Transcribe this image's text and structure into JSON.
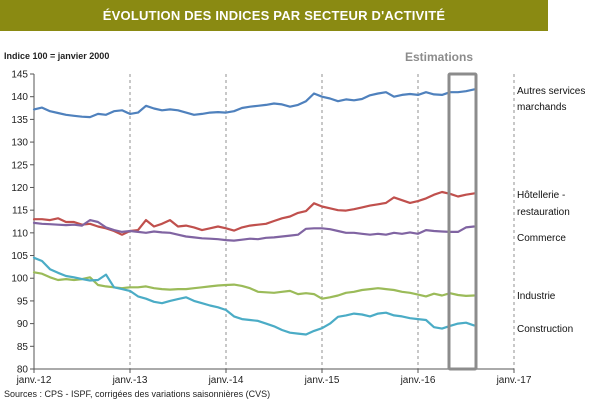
{
  "header": {
    "title": "ÉVOLUTION DES INDICES PAR SECTEUR D'ACTIVITÉ"
  },
  "index_note": "Indice 100 = janvier 2000",
  "estimations_label": "Estimations",
  "source": "Sources : CPS - ISPF, corrigées des variations saisonnières (CVS)",
  "chart_data": {
    "type": "line",
    "title": "ÉVOLUTION DES INDICES PAR SECTEUR D'ACTIVITÉ",
    "xlabel": "",
    "ylabel": "Indice 100 = janvier 2000",
    "ylim": [
      80,
      145
    ],
    "y_ticks": [
      80,
      85,
      90,
      95,
      100,
      105,
      110,
      115,
      120,
      125,
      130,
      135,
      140,
      145
    ],
    "x_ticks": [
      "janv.-12",
      "janv.-13",
      "janv.-14",
      "janv.-15",
      "janv.-16",
      "janv.-17"
    ],
    "x_start_label": "janv.-12",
    "x_period": "monthly",
    "highlight": {
      "label": "Estimations",
      "from_month_index": 52,
      "to_month_index": 55
    },
    "grid": "vertical dashed at January",
    "legend": "labels at right end of each line",
    "series": [
      {
        "name": "Autres services marchands",
        "label_lines": [
          "Autres services",
          "marchands"
        ],
        "color": "#4f81bd",
        "values": [
          137.2,
          137.6,
          136.8,
          136.4,
          136.0,
          135.8,
          135.6,
          135.5,
          136.2,
          136.0,
          136.8,
          137.0,
          136.2,
          136.5,
          138.0,
          137.4,
          137.0,
          137.2,
          137.0,
          136.5,
          136.0,
          136.2,
          136.5,
          136.6,
          136.5,
          136.8,
          137.5,
          137.8,
          138.0,
          138.2,
          138.5,
          138.3,
          137.8,
          138.2,
          139.0,
          140.7,
          140.0,
          139.6,
          139.0,
          139.4,
          139.2,
          139.5,
          140.3,
          140.7,
          141.0,
          140.0,
          140.4,
          140.6,
          140.4,
          141.0,
          140.5,
          140.4,
          141.0,
          141.0,
          141.2,
          141.6
        ]
      },
      {
        "name": "Hôtellerie - restauration",
        "label_lines": [
          "Hôtellerie -",
          "restauration"
        ],
        "color": "#c0504d",
        "values": [
          113.0,
          113.0,
          112.8,
          113.2,
          112.4,
          112.4,
          111.8,
          112.0,
          111.4,
          111.0,
          110.4,
          109.6,
          110.4,
          110.6,
          112.8,
          111.4,
          112.0,
          112.8,
          111.4,
          111.6,
          111.2,
          110.6,
          111.0,
          111.4,
          111.0,
          110.5,
          111.2,
          111.6,
          111.8,
          112.0,
          112.6,
          113.2,
          113.6,
          114.4,
          114.8,
          116.5,
          115.8,
          115.4,
          115.0,
          114.9,
          115.2,
          115.6,
          116.0,
          116.3,
          116.6,
          117.8,
          117.2,
          116.6,
          117.0,
          117.6,
          118.4,
          119.0,
          118.6,
          118.0,
          118.4,
          118.7
        ]
      },
      {
        "name": "Commerce",
        "label_lines": [
          "Commerce"
        ],
        "color": "#8064a2",
        "values": [
          112.2,
          112.0,
          111.9,
          111.8,
          111.7,
          111.8,
          111.6,
          112.8,
          112.4,
          111.2,
          110.6,
          110.2,
          110.4,
          110.2,
          110.0,
          110.3,
          110.1,
          110.0,
          109.6,
          109.2,
          109.0,
          108.8,
          108.7,
          108.6,
          108.4,
          108.3,
          108.5,
          108.7,
          108.6,
          108.9,
          109.0,
          109.2,
          109.4,
          109.6,
          110.9,
          111.0,
          111.0,
          110.8,
          110.4,
          110.0,
          110.0,
          109.8,
          109.6,
          109.8,
          109.6,
          110.0,
          109.8,
          110.1,
          109.8,
          110.6,
          110.4,
          110.3,
          110.2,
          110.2,
          111.2,
          111.4
        ]
      },
      {
        "name": "Industrie",
        "label_lines": [
          "Industrie"
        ],
        "color": "#9bbb59",
        "values": [
          101.3,
          101.0,
          100.2,
          99.6,
          99.8,
          99.6,
          99.8,
          100.2,
          98.5,
          98.2,
          98.0,
          97.8,
          98.0,
          98.0,
          98.2,
          97.8,
          97.6,
          97.5,
          97.6,
          97.6,
          97.8,
          98.0,
          98.2,
          98.4,
          98.5,
          98.6,
          98.3,
          97.8,
          97.0,
          96.9,
          96.8,
          97.0,
          97.2,
          96.5,
          96.7,
          96.5,
          95.5,
          95.8,
          96.2,
          96.8,
          97.0,
          97.4,
          97.6,
          97.8,
          97.6,
          97.4,
          97.0,
          96.8,
          96.4,
          96.0,
          96.6,
          96.2,
          96.7,
          96.3,
          96.1,
          96.2
        ]
      },
      {
        "name": "Construction",
        "label_lines": [
          "Construction"
        ],
        "color": "#4bacc6",
        "values": [
          104.5,
          103.8,
          102.0,
          101.2,
          100.5,
          100.2,
          99.8,
          99.5,
          99.6,
          100.8,
          98.0,
          97.6,
          97.2,
          96.0,
          95.5,
          94.8,
          94.5,
          95.0,
          95.4,
          95.8,
          95.0,
          94.5,
          94.0,
          93.6,
          93.0,
          91.6,
          91.0,
          90.8,
          90.6,
          90.0,
          89.4,
          88.6,
          88.0,
          87.8,
          87.6,
          88.4,
          89.0,
          90.0,
          91.5,
          91.8,
          92.2,
          92.0,
          91.6,
          92.2,
          92.4,
          91.8,
          91.6,
          91.2,
          91.0,
          90.8,
          89.2,
          88.9,
          89.5,
          90.0,
          90.2,
          89.6
        ]
      }
    ]
  }
}
